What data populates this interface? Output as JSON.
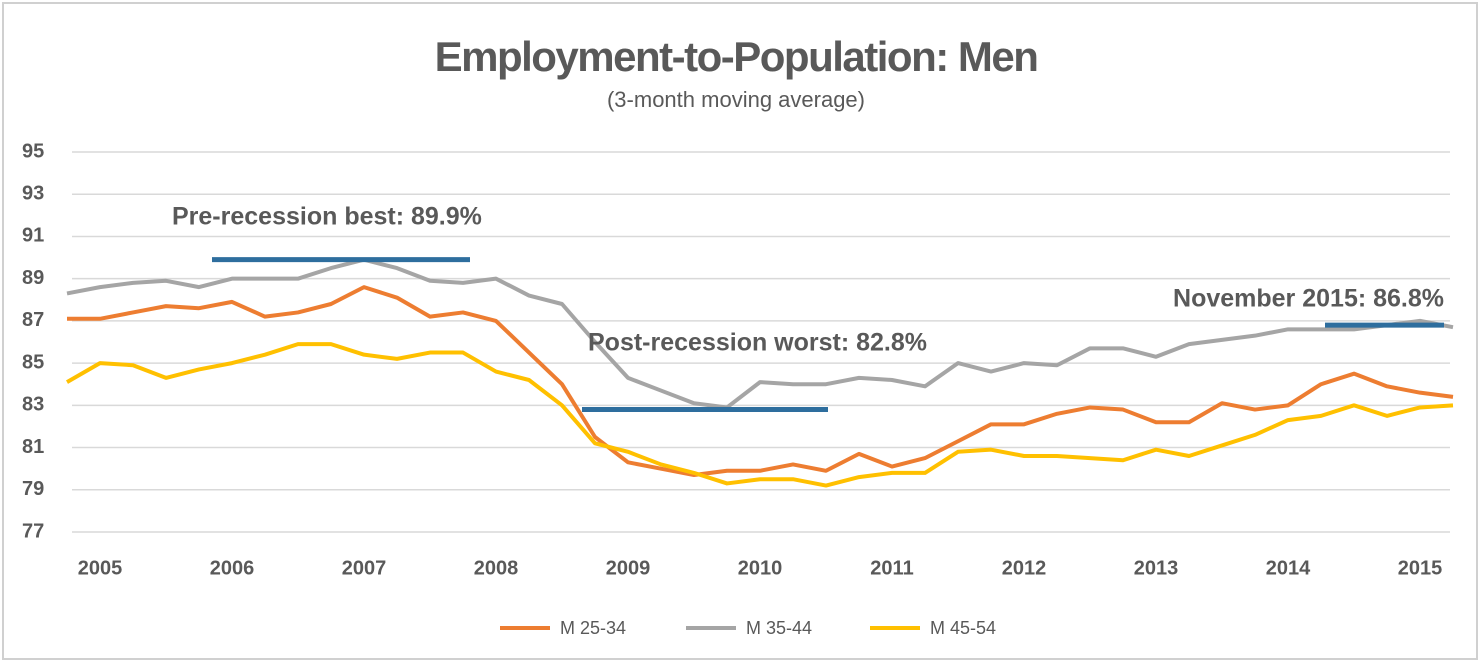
{
  "chart_data": {
    "type": "line",
    "title": "Employment-to-Population: Men",
    "subtitle": "(3-month moving average)",
    "categories": [
      null,
      "2005",
      null,
      null,
      null,
      "2006",
      null,
      null,
      null,
      "2007",
      null,
      null,
      null,
      "2008",
      null,
      null,
      null,
      "2009",
      null,
      null,
      null,
      "2010",
      null,
      null,
      null,
      "2011",
      null,
      null,
      null,
      "2012",
      null,
      null,
      null,
      "2013",
      null,
      null,
      null,
      "2014",
      null,
      null,
      null,
      "2015",
      null
    ],
    "series": [
      {
        "name": "M 25-34",
        "color": "#ED7D31",
        "values": [
          87.1,
          87.1,
          87.4,
          87.7,
          87.6,
          87.9,
          87.2,
          87.4,
          87.8,
          88.6,
          88.1,
          87.2,
          87.4,
          87.0,
          85.5,
          84.0,
          81.5,
          80.3,
          80.0,
          79.7,
          79.9,
          79.9,
          80.2,
          79.9,
          80.7,
          80.1,
          80.5,
          81.3,
          82.1,
          82.1,
          82.6,
          82.9,
          82.8,
          82.2,
          82.2,
          83.1,
          82.8,
          83.0,
          84.0,
          84.5,
          83.9,
          83.6,
          83.4
        ]
      },
      {
        "name": "M 35-44",
        "color": "#A5A5A5",
        "values": [
          88.3,
          88.6,
          88.8,
          88.9,
          88.6,
          89.0,
          89.0,
          89.0,
          89.5,
          89.9,
          89.5,
          88.9,
          88.8,
          89.0,
          88.2,
          87.8,
          86.0,
          84.3,
          83.7,
          83.1,
          82.9,
          84.1,
          84.0,
          84.0,
          84.3,
          84.2,
          83.9,
          85.0,
          84.6,
          85.0,
          84.9,
          85.7,
          85.7,
          85.3,
          85.9,
          86.1,
          86.3,
          86.6,
          86.6,
          86.6,
          86.8,
          87.0,
          86.7
        ]
      },
      {
        "name": "M 45-54",
        "color": "#FFC000",
        "values": [
          84.1,
          85.0,
          84.9,
          84.3,
          84.7,
          85.0,
          85.4,
          85.9,
          85.9,
          85.4,
          85.2,
          85.5,
          85.5,
          84.6,
          84.2,
          83.0,
          81.2,
          80.8,
          80.2,
          79.8,
          79.3,
          79.5,
          79.5,
          79.2,
          79.6,
          79.8,
          79.8,
          80.8,
          80.9,
          80.6,
          80.6,
          80.5,
          80.4,
          80.9,
          80.6,
          81.1,
          81.6,
          82.3,
          82.5,
          83.0,
          82.5,
          82.9,
          83.0
        ]
      }
    ],
    "reference_lines": [
      {
        "label": "Pre-recession best: 89.9%",
        "value": 89.9
      },
      {
        "label": "Post-recession worst: 82.8%",
        "value": 82.8
      },
      {
        "label": "November 2015: 86.8%",
        "value": 86.8
      }
    ],
    "reference_color": "#2E6E9E",
    "ylim": [
      77,
      95
    ],
    "yticks": [
      77,
      79,
      81,
      83,
      85,
      87,
      89,
      91,
      93,
      95
    ],
    "grid": true
  }
}
